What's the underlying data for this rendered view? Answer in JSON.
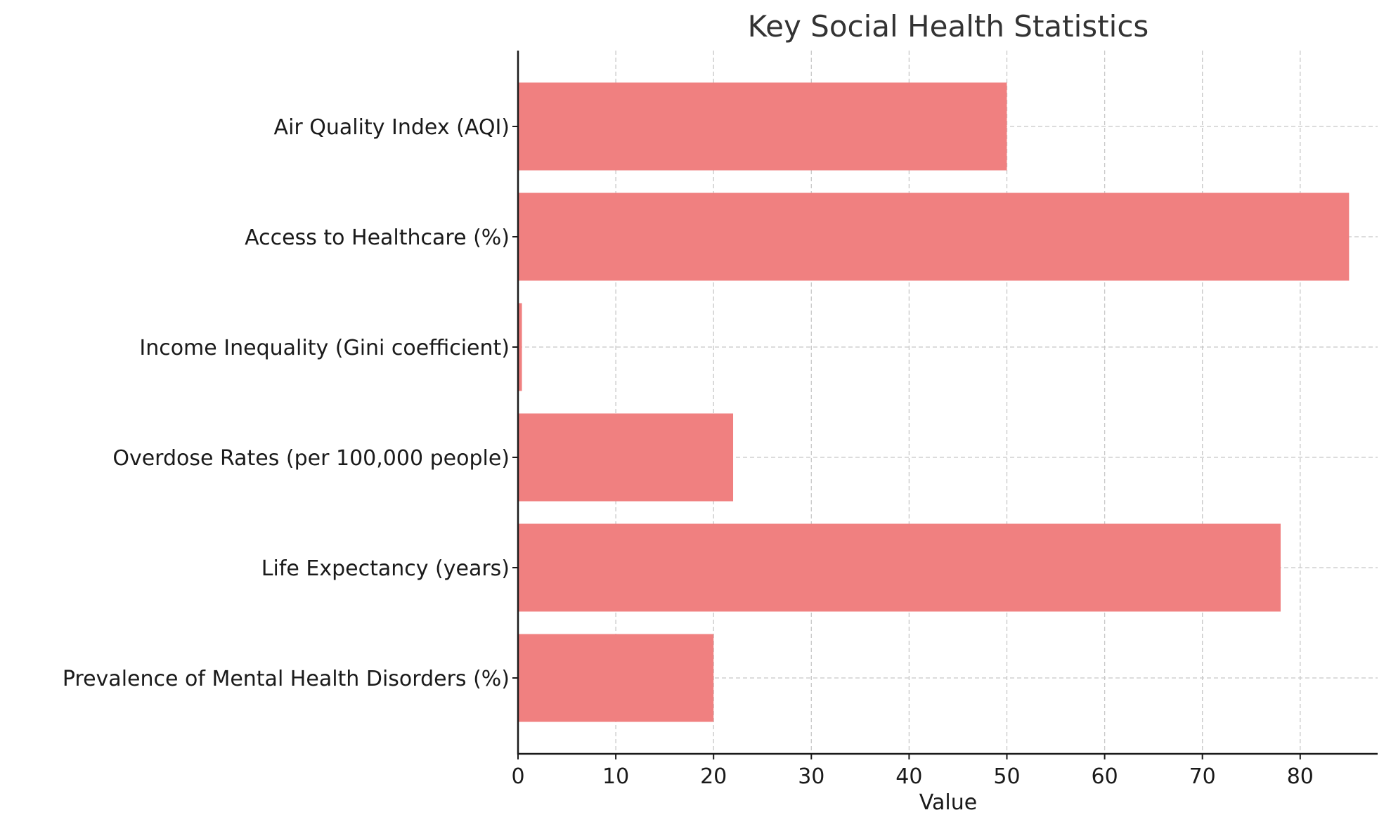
{
  "chart_data": {
    "type": "bar",
    "orientation": "horizontal",
    "title": "Key Social Health Statistics",
    "xlabel": "Value",
    "ylabel": "",
    "categories": [
      "Air Quality Index (AQI)",
      "Access to Healthcare (%)",
      "Income Inequality (Gini coefficient)",
      "Overdose Rates (per 100,000 people)",
      "Life Expectancy (years)",
      "Prevalence of Mental Health Disorders (%)"
    ],
    "values": [
      50,
      85,
      0.4,
      22,
      78,
      20
    ],
    "xlim": [
      0,
      89.25
    ],
    "xticks": [
      "0",
      "10",
      "20",
      "30",
      "40",
      "50",
      "60",
      "70",
      "80"
    ],
    "grid": true,
    "bar_color": "#f08080",
    "axis_color": "#1a1a1a",
    "grid_color": "#c8c8c8"
  }
}
